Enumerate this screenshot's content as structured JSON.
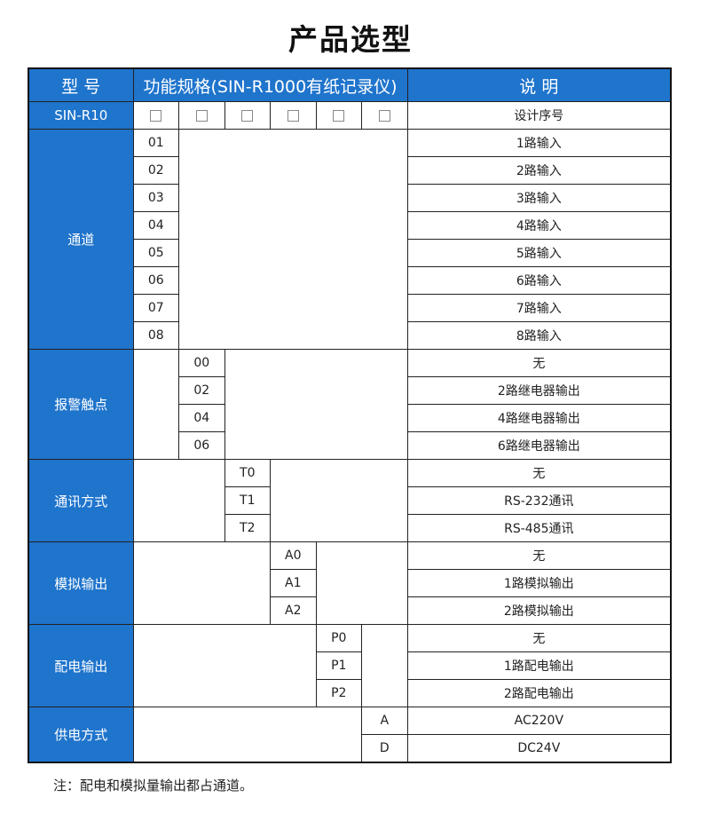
{
  "title": "产品选型",
  "header": {
    "model": "型 号",
    "spec": "功能规格(SIN-R1000有纸记录仪)",
    "desc": "说 明"
  },
  "model_row": {
    "model": "SIN-R10",
    "checkbox_count": 6,
    "desc": "设计序号"
  },
  "groups": [
    {
      "label": "通道",
      "col": 1,
      "items": [
        {
          "code": "01",
          "desc": "1路输入"
        },
        {
          "code": "02",
          "desc": "2路输入"
        },
        {
          "code": "03",
          "desc": "3路输入"
        },
        {
          "code": "04",
          "desc": "4路输入"
        },
        {
          "code": "05",
          "desc": "5路输入"
        },
        {
          "code": "06",
          "desc": "6路输入"
        },
        {
          "code": "07",
          "desc": "7路输入"
        },
        {
          "code": "08",
          "desc": "8路输入"
        }
      ]
    },
    {
      "label": "报警触点",
      "col": 2,
      "items": [
        {
          "code": "00",
          "desc": "无"
        },
        {
          "code": "02",
          "desc": "2路继电器输出"
        },
        {
          "code": "04",
          "desc": "4路继电器输出"
        },
        {
          "code": "06",
          "desc": "6路继电器输出"
        }
      ]
    },
    {
      "label": "通讯方式",
      "col": 3,
      "items": [
        {
          "code": "T0",
          "desc": "无"
        },
        {
          "code": "T1",
          "desc": "RS-232通讯"
        },
        {
          "code": "T2",
          "desc": "RS-485通讯"
        }
      ]
    },
    {
      "label": "模拟输出",
      "col": 4,
      "items": [
        {
          "code": "A0",
          "desc": "无"
        },
        {
          "code": "A1",
          "desc": "1路模拟输出"
        },
        {
          "code": "A2",
          "desc": "2路模拟输出"
        }
      ]
    },
    {
      "label": "配电输出",
      "col": 5,
      "items": [
        {
          "code": "P0",
          "desc": "无"
        },
        {
          "code": "P1",
          "desc": "1路配电输出"
        },
        {
          "code": "P2",
          "desc": "2路配电输出"
        }
      ]
    },
    {
      "label": "供电方式",
      "col": 6,
      "items": [
        {
          "code": "A",
          "desc": "AC220V"
        },
        {
          "code": "D",
          "desc": "DC24V"
        }
      ]
    }
  ],
  "note": "注：配电和模拟量输出都占通道。",
  "colors": {
    "header_blue": "#1f74cc"
  }
}
